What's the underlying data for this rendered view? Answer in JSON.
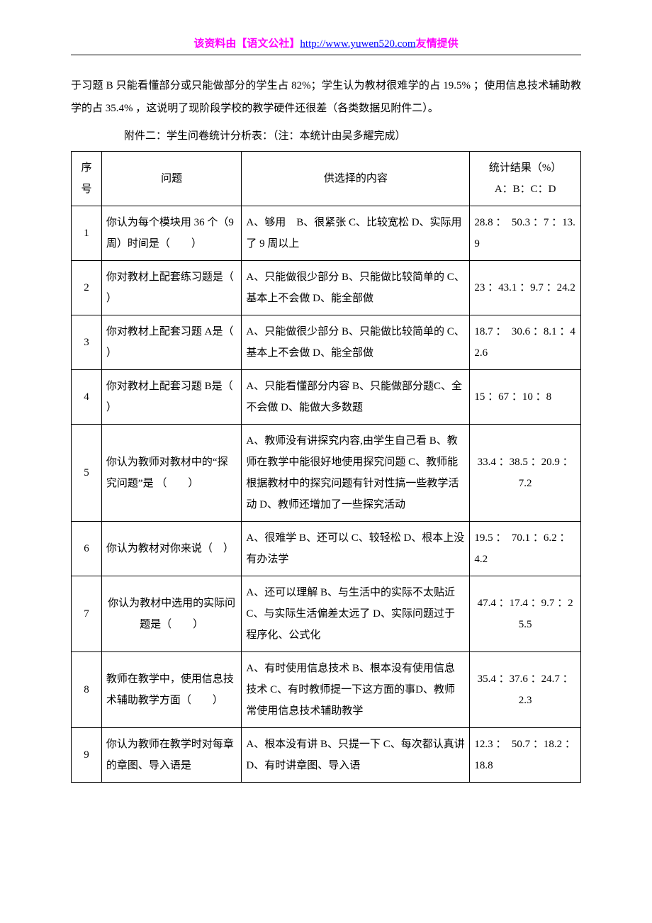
{
  "header": {
    "prefix": "该资料由",
    "brand": "【语文公社】",
    "url": "http://www.yuwen520.com",
    "suffix": "友情提供"
  },
  "paragraph": "于习题 B 只能看懂部分或只能做部分的学生占 82%；学生认为教材很难学的占 19.5% ；使用信息技术辅助教学的占 35.4% ，这说明了现阶段学校的教学硬件还很差（各类数据见附件二）。",
  "caption": "附件二：学生问卷统计分析表：（注：本统计由吴多耀完成）",
  "table": {
    "columns": {
      "num": "序号",
      "question": "问题",
      "options": "供选择的内容",
      "result_l1": "统计结果（%）",
      "result_l2": "A：B：C：D"
    },
    "rows": [
      {
        "n": "1",
        "q": "你认为每个模块用 36 个（9 周）时间是（　　）",
        "opt": "A、够用　B、很紧张 C、比较宽松 D、实际用了 9 周以上",
        "res": "28.8 ：　50.3 ：7 ：13.9"
      },
      {
        "n": "2",
        "q": "你对教材上配套练习题是（　　）",
        "opt": "A、只能做很少部分 B、只能做比较简单的 C、基本上不会做 D、能全部做",
        "res": "23 ：43.1 ：9.7 ：24.2"
      },
      {
        "n": "3",
        "q": "你对教材上配套习题 A是（　　）",
        "opt": "A、只能做很少部分 B、只能做比较简单的 C、基本上不会做 D、能全部做",
        "res": "18.7 ：　30.6 ：8.1 ：42.6"
      },
      {
        "n": "4",
        "q": "你对教材上配套习题 B是（　　）",
        "opt": "A、只能看懂部分内容 B、只能做部分题C、全不会做 D、能做大多数题",
        "res": "15 ：67 ：10 ：8"
      },
      {
        "n": "5",
        "q": "你认为教师对教材中的“探究问题”是 （　　）",
        "opt": "A、教师没有讲探究内容,由学生自己看 B、教师在教学中能很好地使用探究问题 C、教师能根据教材中的探究问题有针对性搞一些教学活动 D、教师还增加了一些探究活动",
        "res": "33.4 ：38.5 ：20.9 ：7.2",
        "res_align": "center"
      },
      {
        "n": "6",
        "q": "你认为教材对你来说（　）",
        "opt": "A、很难学 B、还可以 C、较轻松 D、根本上没有办法学",
        "res": "19.5 ：　70.1 ：6.2 ：4.2"
      },
      {
        "n": "7",
        "q": "你认为教材中选用的实际问题是（　　）",
        "opt": "A、还可以理解 B、与生活中的实际不太贴近 C、与实际生活偏差太远了 D、实际问题过于程序化、公式化",
        "res": "47.4 ：17.4 ：9.7 ：25.5",
        "q_align": "center",
        "res_align": "center"
      },
      {
        "n": "8",
        "q": "教师在教学中，使用信息技术辅助教学方面（　　）",
        "opt": "A、有时使用信息技术 B、根本没有使用信息技术 C、有时教师提一下这方面的事D、教师常使用信息技术辅助教学",
        "res": "35.4 ：37.6 ：24.7 ：2.3",
        "res_align": "center"
      },
      {
        "n": "9",
        "q": "你认为教师在教学时对每章的章图、导入语是",
        "opt": "A、根本没有讲 B、只提一下 C、每次都认真讲 D、有时讲章图、导入语",
        "res": "12.3 ：　50.7 ：18.2 ：18.8"
      }
    ]
  }
}
